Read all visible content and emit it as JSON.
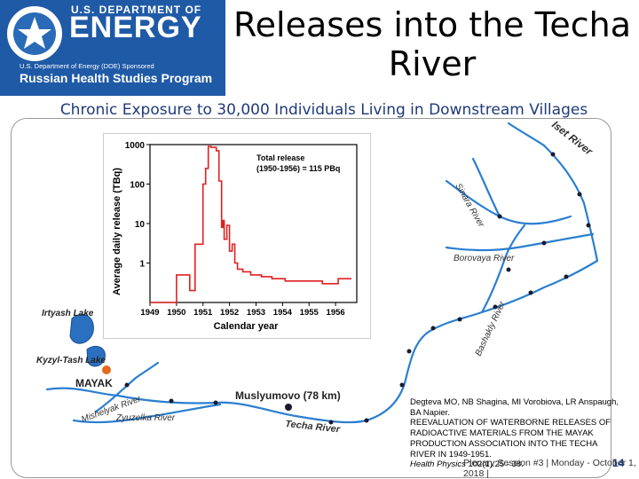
{
  "logo": {
    "dept": "U.S. DEPARTMENT OF",
    "energy": "ENERGY",
    "sponsored": "U.S. Department of Energy (DOE) Sponsored",
    "program": "Russian Health Studies Program"
  },
  "slide": {
    "title_line1": "Releases into the Techa",
    "title_line2": "River",
    "subtitle": "Chronic Exposure to 30,000 Individuals Living in Downstream Villages"
  },
  "map": {
    "labels": {
      "iset": "Iset River",
      "sinara": "Sinara River",
      "borovaya": "Borovaya River",
      "bashakly": "Bashakly River",
      "irtyash": "Irtyash Lake",
      "kyzyl": "Kyzyl-Tash Lake",
      "mayak": "MAYAK",
      "mishelyak": "Mishelyak River",
      "zyuzelka": "Zyuzelka River",
      "muslyumovo": "Muslyumovo (78 km)",
      "techa": "Techa River"
    },
    "colors": {
      "river": "#2a7fd0",
      "lake": "#2a6fc0",
      "mayak": "#e26a1c",
      "village": "#1a1a2e"
    }
  },
  "chart_data": {
    "type": "line",
    "ylabel": "Average daily release (TBq)",
    "xlabel": "Calendar year",
    "annotation_line1": "Total release",
    "annotation_line2": "(1950-1956) = 115 PBq",
    "y_scale": "log",
    "ylim": [
      0.1,
      1000
    ],
    "y_ticks": [
      "1000",
      "100",
      "10",
      "1"
    ],
    "x_ticks": [
      "1949",
      "1950",
      "1951",
      "1952",
      "1953",
      "1954",
      "1955",
      "1956"
    ],
    "xlim": [
      1949,
      1956.8
    ],
    "color": "#e02020",
    "x": [
      1949.0,
      1950.0,
      1950.0,
      1950.5,
      1950.5,
      1950.7,
      1950.7,
      1951.0,
      1951.0,
      1951.1,
      1951.1,
      1951.2,
      1951.2,
      1951.3,
      1951.3,
      1951.5,
      1951.5,
      1951.6,
      1951.6,
      1951.7,
      1951.7,
      1951.75,
      1951.75,
      1951.8,
      1951.8,
      1951.9,
      1951.9,
      1952.0,
      1952.0,
      1952.1,
      1952.1,
      1952.2,
      1952.2,
      1952.3,
      1952.3,
      1952.5,
      1952.5,
      1952.8,
      1952.8,
      1953.2,
      1953.2,
      1953.6,
      1953.6,
      1954.1,
      1954.1,
      1955.5,
      1955.5,
      1956.1,
      1956.1,
      1956.6
    ],
    "y": [
      0.1,
      0.1,
      0.5,
      0.5,
      0.2,
      0.2,
      3,
      3,
      100,
      100,
      250,
      250,
      900,
      900,
      850,
      850,
      700,
      700,
      120,
      120,
      8,
      8,
      12,
      12,
      4,
      4,
      9,
      9,
      2,
      2,
      3,
      3,
      1,
      1,
      0.7,
      0.7,
      0.6,
      0.6,
      0.5,
      0.5,
      0.45,
      0.45,
      0.4,
      0.4,
      0.35,
      0.35,
      0.3,
      0.3,
      0.4,
      0.4
    ]
  },
  "citation": {
    "authors": "Degteva MO, NB Shagina, MI Vorobiova, LR Anspaugh, BA Napier.",
    "title": "REEVALUATION OF WATERBORNE RELEASES OF RADIOACTIVE MATERIALS FROM THE MAYAK PRODUCTION ASSOCIATION INTO THE TECHA RIVER IN 1949-1951.",
    "journal": "Health Physics",
    "pages": "102(1):25 - 38."
  },
  "footer": {
    "text": "Plenary Session #3 | Monday - October 1, 2018 |",
    "page": "14"
  }
}
